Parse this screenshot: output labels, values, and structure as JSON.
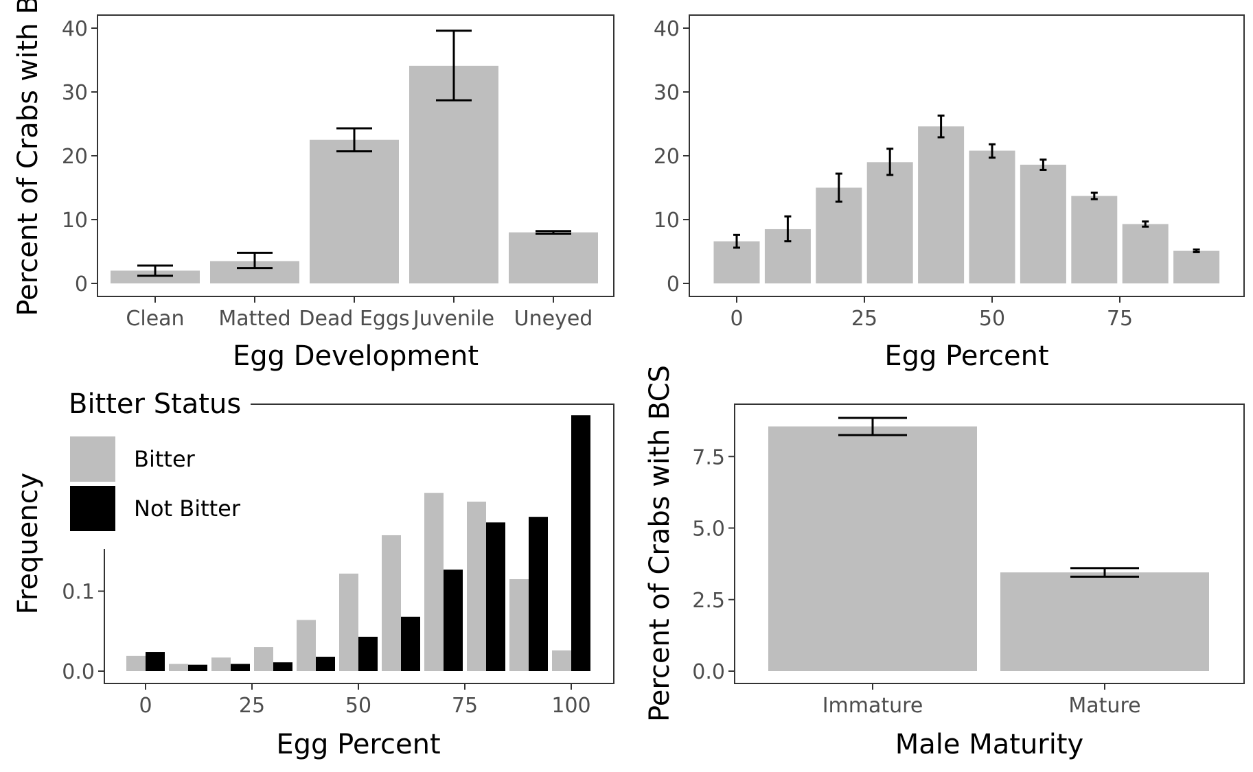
{
  "colors": {
    "bar": "#bebebe",
    "bitter": "#bebebe",
    "not_bitter": "#000000",
    "errorbar": "#000000",
    "panel_border": "#333333"
  },
  "chart_data": [
    {
      "id": "topleft",
      "type": "bar",
      "xlabel": "Egg Development",
      "ylabel": "Percent of Crabs with B",
      "categories": [
        "Clean",
        "Matted",
        "Dead Eggs",
        "Juvenile",
        "Uneyed"
      ],
      "values": [
        2.0,
        3.5,
        22.5,
        34.1,
        8.0
      ],
      "err_low": [
        1.2,
        2.4,
        20.7,
        28.7,
        7.8
      ],
      "err_high": [
        2.8,
        4.8,
        24.3,
        39.6,
        8.2
      ],
      "ylim": [
        0,
        40
      ],
      "yticks": [
        0,
        10,
        20,
        30,
        40
      ],
      "grid": false
    },
    {
      "id": "topright",
      "type": "bar",
      "xlabel": "Egg Percent",
      "ylabel": "",
      "x": [
        0,
        10,
        20,
        30,
        40,
        50,
        60,
        70,
        80,
        90
      ],
      "values": [
        6.6,
        8.5,
        15.0,
        19.0,
        24.6,
        20.8,
        18.6,
        13.7,
        9.3,
        5.1
      ],
      "err_low": [
        5.6,
        6.6,
        12.8,
        17.0,
        22.9,
        19.7,
        17.8,
        13.2,
        8.9,
        4.9
      ],
      "err_high": [
        7.6,
        10.5,
        17.2,
        21.1,
        26.3,
        21.8,
        19.4,
        14.2,
        9.7,
        5.3
      ],
      "ylim": [
        0,
        40
      ],
      "yticks": [
        0,
        10,
        20,
        30,
        40
      ],
      "xticks": [
        0,
        25,
        50,
        75
      ],
      "grid": false
    },
    {
      "id": "bottomleft",
      "type": "bar",
      "xlabel": "Egg Percent",
      "ylabel": "Frequency",
      "x": [
        0,
        10,
        20,
        30,
        40,
        50,
        60,
        70,
        80,
        90,
        100
      ],
      "series": [
        {
          "name": "Bitter",
          "values": [
            0.019,
            0.009,
            0.017,
            0.03,
            0.064,
            0.122,
            0.17,
            0.223,
            0.212,
            0.115,
            0.026
          ]
        },
        {
          "name": "Not Bitter",
          "values": [
            0.024,
            0.008,
            0.009,
            0.011,
            0.018,
            0.043,
            0.068,
            0.127,
            0.186,
            0.193,
            0.32
          ]
        }
      ],
      "yticks": [
        0.0,
        0.1
      ],
      "xticks": [
        0,
        25,
        50,
        75,
        100
      ],
      "legend": {
        "title": "Bitter Status",
        "position": "top-left"
      },
      "grid": false
    },
    {
      "id": "bottomright",
      "type": "bar",
      "xlabel": "Male Maturity",
      "ylabel": "Percent of Crabs with BCS",
      "categories": [
        "Immature",
        "Mature"
      ],
      "values": [
        8.55,
        3.45
      ],
      "err_low": [
        8.25,
        3.3
      ],
      "err_high": [
        8.85,
        3.6
      ],
      "ylim": [
        0,
        9.5
      ],
      "yticks": [
        0.0,
        2.5,
        5.0,
        7.5
      ],
      "ytick_labels": [
        "0.0",
        "2.5",
        "5.0",
        "7.5"
      ],
      "grid": false
    }
  ]
}
